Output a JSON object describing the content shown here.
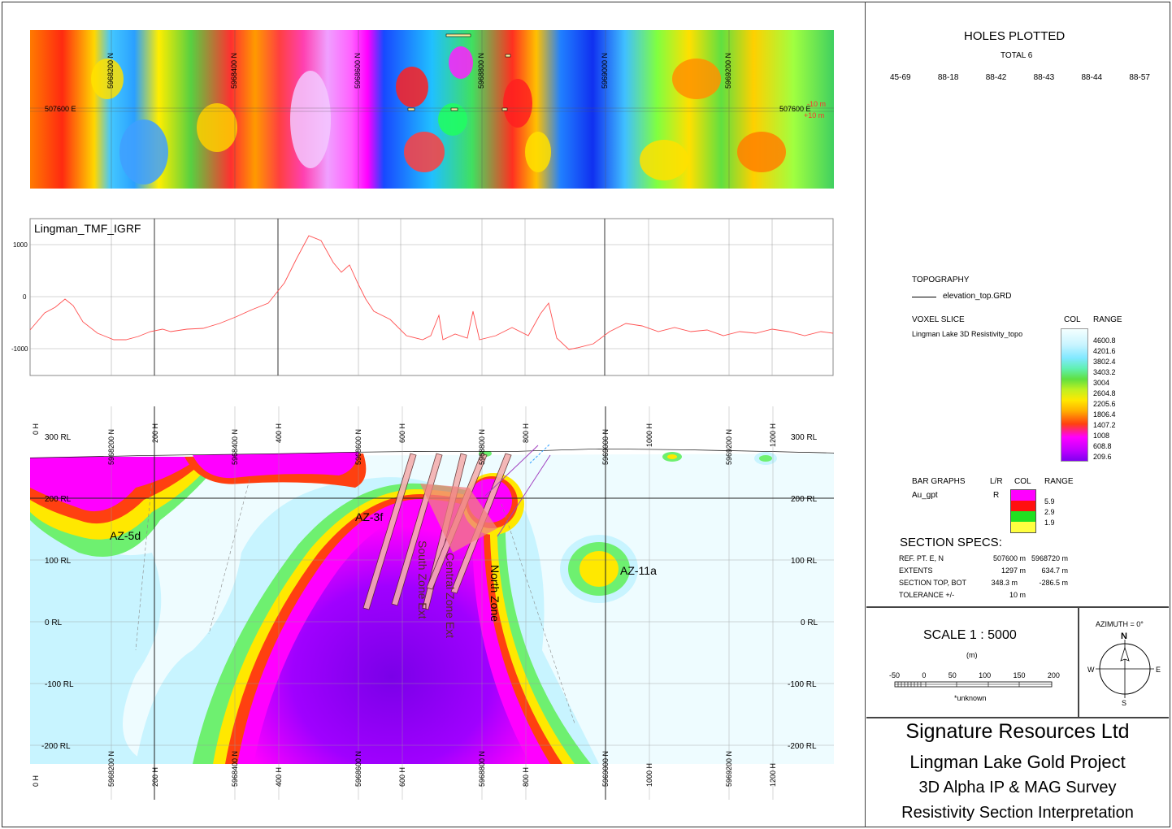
{
  "plan_map": {
    "northing_labels": [
      "5968200 N",
      "5968400 N",
      "5968600 N",
      "5968800 N",
      "5969000 N",
      "5969200 N"
    ],
    "easting_label_left": "507600 E",
    "easting_label_right": "507600 E",
    "tol_plus": "-10 m",
    "tol_minus": "+10 m"
  },
  "profile": {
    "title": "Lingman_TMF_IGRF",
    "y_ticks": [
      "1000",
      "0",
      "-1000"
    ]
  },
  "section": {
    "rl_labels": [
      "300 RL",
      "200 RL",
      "100 RL",
      "0 RL",
      "-100 RL",
      "-200 RL"
    ],
    "h_labels": [
      "0 H",
      "200 H",
      "400 H",
      "600 H",
      "800 H",
      "1000 H",
      "1200 H"
    ],
    "n_labels": [
      "5968200 N",
      "5968400 N",
      "5968600 N",
      "5968800 N",
      "5969000 N",
      "5969200 N"
    ],
    "zones": {
      "az5d": "AZ-5d",
      "az3f": "AZ-3f",
      "az11a": "AZ-11a",
      "south": "South Zone Ext",
      "central": "Central Zone Ext",
      "north": "North Zone"
    }
  },
  "holes": {
    "title": "HOLES PLOTTED",
    "total": "TOTAL 6",
    "ids": [
      "45-69",
      "88-18",
      "88-42",
      "88-43",
      "88-44",
      "88-57"
    ]
  },
  "legend": {
    "topo_title": "TOPOGRAPHY",
    "topo_item": "elevation_top.GRD",
    "voxel_title": "VOXEL SLICE",
    "voxel_item": "Lingman Lake 3D Resistivity_topo",
    "col_header": "COL",
    "range_header": "RANGE",
    "ranges": [
      "4600.8",
      "4201.6",
      "3802.4",
      "3403.2",
      "3004",
      "2604.8",
      "2205.6",
      "1806.4",
      "1407.2",
      "1008",
      "608.8",
      "209.6"
    ],
    "bar_title": "BAR GRAPHS",
    "lr_header": "L/R",
    "bar_col_header": "COL",
    "bar_range_header": "RANGE",
    "bar_item": "Au_gpt",
    "bar_lr": "R",
    "bar_ranges": [
      "5.9",
      "2.9",
      "1.9"
    ]
  },
  "specs": {
    "title": "SECTION  SPECS:",
    "rows": [
      {
        "label": "REF. PT.  E, N",
        "v1": "507600 m",
        "v2": "5968720 m"
      },
      {
        "label": "EXTENTS",
        "v1": "1297 m",
        "v2": "634.7 m"
      },
      {
        "label": "SECTION TOP, BOT",
        "v1": "348.3 m",
        "v2": "-286.5 m"
      },
      {
        "label": "TOLERANCE  +/-",
        "v1": "10 m",
        "v2": ""
      }
    ]
  },
  "scale": {
    "title": "SCALE  1 : 5000",
    "unit": "(m)",
    "ticks": [
      "-50",
      "0",
      "50",
      "100",
      "150",
      "200"
    ],
    "note": "*unknown"
  },
  "azimuth": {
    "label": "AZIMUTH = 0°",
    "n": "N",
    "s": "S",
    "e": "E",
    "w": "W"
  },
  "title_block": {
    "company": "Signature Resources Ltd",
    "project": "Lingman Lake Gold Project",
    "survey": "3D Alpha IP & MAG Survey",
    "interpretation": "Resistivity Section Interpretation"
  }
}
